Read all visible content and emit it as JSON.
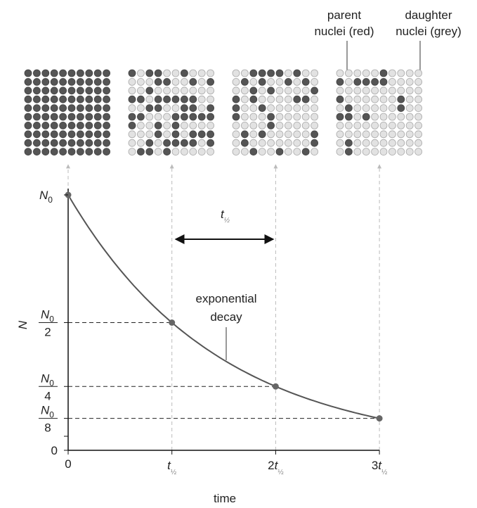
{
  "labels": {
    "parent": [
      "parent",
      "nuclei (red)"
    ],
    "daughter": [
      "daughter",
      "nuclei (grey)"
    ],
    "curve": [
      "exponential",
      "decay"
    ],
    "y_axis": "N",
    "x_axis": "time",
    "interval": {
      "symbol": "t",
      "subscript": "½"
    }
  },
  "y_ticks": [
    {
      "symbol": "N",
      "subscript": "0"
    },
    {
      "symbol": "N",
      "subscript": "0",
      "denominator": "2"
    },
    {
      "symbol": "N",
      "subscript": "0",
      "denominator": "4"
    },
    {
      "symbol": "N",
      "subscript": "0",
      "denominator": "8"
    },
    {
      "text": "0"
    }
  ],
  "x_ticks": [
    {
      "text": "0"
    },
    {
      "symbol": "t",
      "subscript": "½"
    },
    {
      "coefficient": "2",
      "symbol": "t",
      "subscript": "½"
    },
    {
      "coefficient": "3",
      "symbol": "t",
      "subscript": "½"
    }
  ]
}
